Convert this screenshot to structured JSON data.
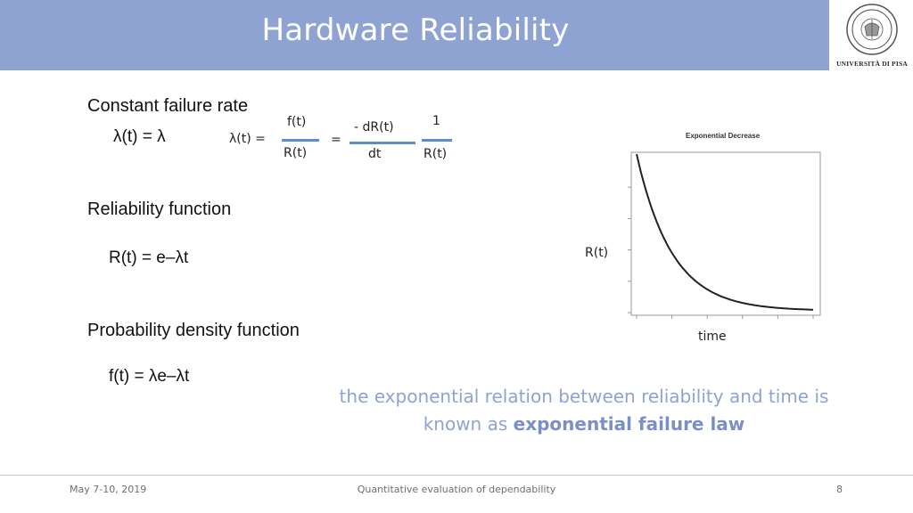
{
  "header": {
    "title": "Hardware Reliability"
  },
  "logo": {
    "caption": "UNIVERSITÀ DI PISA",
    "ring_text": "IN SUPREMAE DIGNITATIS",
    "year": "1343"
  },
  "sections": {
    "constant_failure_rate": {
      "heading": "Constant failure rate",
      "equation": "λ(t) = λ",
      "lambda_lhs": "λ(t) =",
      "frac1_num": "f(t)",
      "frac1_den": "R(t)",
      "equals": "=",
      "frac2_num": "- dR(t)",
      "frac2_den": "dt",
      "frac3_num": "1",
      "frac3_den": "R(t)"
    },
    "reliability_function": {
      "heading": "Reliability function",
      "equation": "R(t) = e–λt"
    },
    "pdf": {
      "heading": "Probability density function",
      "equation": "f(t) = λe–λt"
    }
  },
  "chart": {
    "title": "Exponential Decrease",
    "ylabel": "R(t)",
    "xlabel": "time",
    "grid": false,
    "colors": {
      "curve": "#222222",
      "frame": "#999999"
    }
  },
  "chart_data": {
    "type": "line",
    "title": "Exponential Decrease",
    "xlabel": "time",
    "ylabel": "R(t)",
    "series": [
      {
        "x": [
          0,
          0.5,
          1,
          1.5,
          2,
          2.5,
          3,
          3.5,
          4,
          4.5,
          5
        ],
        "values": [
          1.0,
          0.61,
          0.37,
          0.22,
          0.14,
          0.08,
          0.05,
          0.03,
          0.018,
          0.011,
          0.007
        ]
      }
    ],
    "xlim": [
      0,
      5
    ],
    "ylim": [
      0,
      1
    ]
  },
  "note": {
    "line1": "the exponential relation between  reliability and time is",
    "line2_prefix": "known as ",
    "line2_bold": "exponential failure law"
  },
  "footer": {
    "date": "May 7-10, 2019",
    "course": "Quantitative evaluation of dependability",
    "page": "8"
  }
}
